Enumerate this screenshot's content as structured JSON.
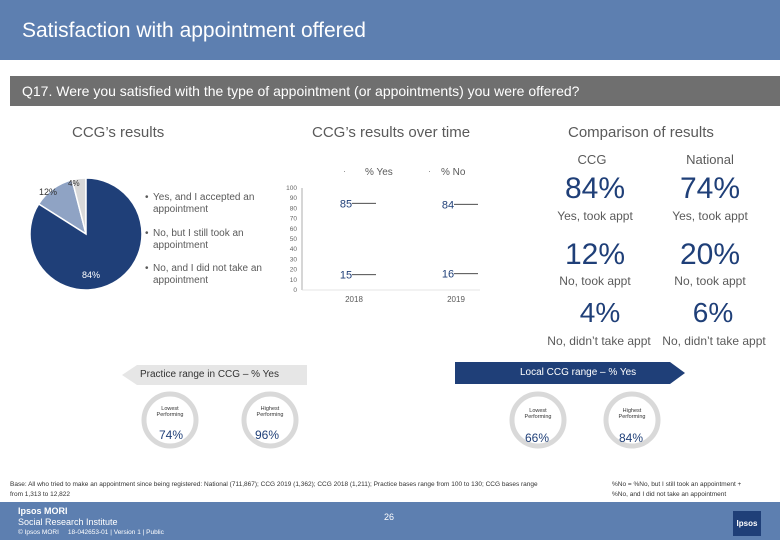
{
  "header": {
    "title": "Satisfaction with appointment offered"
  },
  "question": {
    "text": "Q17. Were you satisfied with the type of appointment (or appointments) you were offered?"
  },
  "sections": {
    "ccg_results": "CCG’s results",
    "over_time": "CCG’s results over time",
    "comparison": "Comparison of results"
  },
  "pie": {
    "labels": [
      "84%",
      "12%",
      "4%"
    ],
    "legend": [
      "Yes, and I accepted an appointment",
      "No, but I still took an appointment",
      "No, and I did not take an appointment"
    ],
    "colors": [
      "#1f3f78",
      "#8fa3c4",
      "#d9d9d9"
    ]
  },
  "chart_data": {
    "type": "line",
    "x": [
      "2018",
      "2019"
    ],
    "series": [
      {
        "name": "% Yes",
        "values": [
          85,
          84
        ]
      },
      {
        "name": "% No",
        "values": [
          15,
          16
        ]
      }
    ],
    "ylim": [
      0,
      100
    ],
    "yticks": [
      "0",
      "10",
      "20",
      "30",
      "40",
      "50",
      "60",
      "70",
      "80",
      "90",
      "100"
    ],
    "legend_markers": [
      "·",
      "·"
    ]
  },
  "comparison": {
    "headers": [
      "CCG",
      "National"
    ],
    "rows": [
      {
        "ccg": "84%",
        "national": "74%",
        "ccg_label": "Yes, took appt",
        "national_label": "Yes, took appt"
      },
      {
        "ccg": "12%",
        "national": "20%",
        "ccg_label": "No, took appt",
        "national_label": "No, took appt"
      },
      {
        "ccg": "4%",
        "national": "6%",
        "ccg_label": "No, didn’t take appt",
        "national_label": "No, didn’t take appt"
      }
    ]
  },
  "practice_range": {
    "title": "Practice range in CCG – % Yes",
    "lowest_label": "Lowest Performing",
    "highest_label": "Highest Performing",
    "lowest_value": "74%",
    "highest_value": "96%"
  },
  "local_range": {
    "title": "Local CCG range – % Yes",
    "lowest_label": "Lowest Performing",
    "highest_label": "Highest Performing",
    "lowest_value": "66%",
    "highest_value": "84%"
  },
  "footer": {
    "base": "Base: All who tried to make an appointment since being registered: National (711,867); CCG 2019 (1,362); CCG 2018 (1,211); Practice bases range from 100 to 130; CCG bases range from 1,313 to 12,822",
    "note_1": "%No = %No, but I still took an appointment +",
    "note_2": "%No, and I did not take an appointment",
    "page": "26",
    "logo_line1": "Ipsos MORI",
    "logo_line2": "Social Research Institute",
    "copyright": "© Ipsos MORI     18-042653-01 | Version 1 | Public",
    "badge": "Ipsos"
  }
}
